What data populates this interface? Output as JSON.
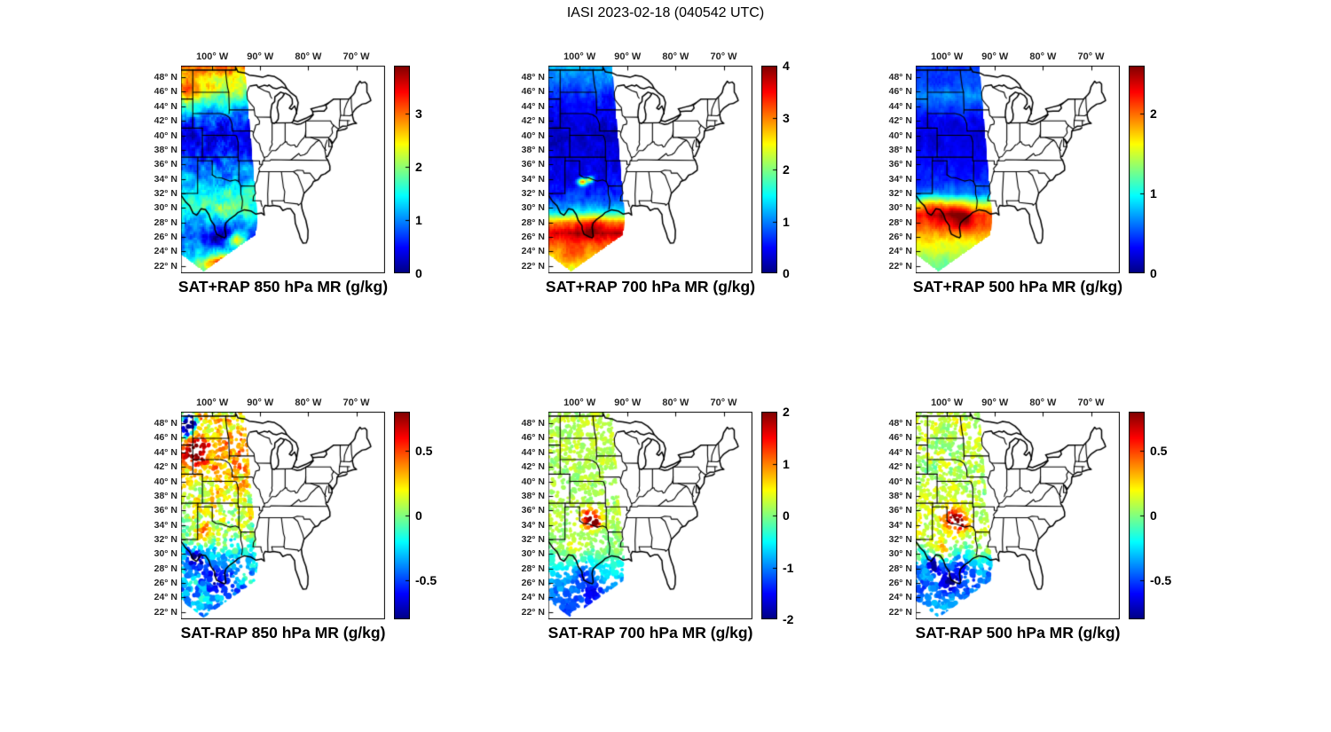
{
  "figure_title": "IASI 2023-02-18 (040542 UTC)",
  "chart_data": {
    "type": "heatmap",
    "description": "Six-panel satellite sounding figure: top row SAT+RAP mixing ratio swath fills, bottom row SAT-RAP mixing ratio difference dots, over US state map.",
    "map_extent": {
      "lon": [
        -106.5,
        -64.0
      ],
      "lat": [
        21.0,
        49.6
      ]
    },
    "lon_ticks": [
      {
        "lon": -100,
        "label": "100° W"
      },
      {
        "lon": -90,
        "label": "90° W"
      },
      {
        "lon": -80,
        "label": "80° W"
      },
      {
        "lon": -70,
        "label": "70° W"
      }
    ],
    "lat_ticks": [
      {
        "lat": 48,
        "label": "48° N"
      },
      {
        "lat": 46,
        "label": "46° N"
      },
      {
        "lat": 44,
        "label": "44° N"
      },
      {
        "lat": 42,
        "label": "42° N"
      },
      {
        "lat": 40,
        "label": "40° N"
      },
      {
        "lat": 38,
        "label": "38° N"
      },
      {
        "lat": 36,
        "label": "36° N"
      },
      {
        "lat": 34,
        "label": "34° N"
      },
      {
        "lat": 32,
        "label": "32° N"
      },
      {
        "lat": 30,
        "label": "30° N"
      },
      {
        "lat": 28,
        "label": "28° N"
      },
      {
        "lat": 26,
        "label": "26° N"
      },
      {
        "lat": 24,
        "label": "24° N"
      },
      {
        "lat": 22,
        "label": "22° N"
      }
    ],
    "swath_polygon": [
      [
        -106.5,
        49.6
      ],
      [
        -93.2,
        49.6
      ],
      [
        -90.5,
        28.6
      ],
      [
        -90.9,
        26.3
      ],
      [
        -101.8,
        21.2
      ],
      [
        -106.5,
        23.6
      ]
    ],
    "panels": [
      {
        "title": "SAT+RAP 850 hPa MR (g/kg)",
        "type": "heatmap",
        "style": "fill",
        "colorbar": {
          "min": 0,
          "max": 3.9,
          "ticks": [
            {
              "value": 3,
              "label": "3"
            },
            {
              "value": 2,
              "label": "2"
            },
            {
              "value": 1,
              "label": "1"
            },
            {
              "value": 0,
              "label": "0"
            }
          ]
        },
        "noise": 0.5,
        "profile": [
          [
            49.6,
            3.0
          ],
          [
            48,
            2.5
          ],
          [
            46,
            2.1
          ],
          [
            44,
            1.4
          ],
          [
            42,
            0.7
          ],
          [
            40,
            0.35
          ],
          [
            38,
            0.5
          ],
          [
            36,
            0.85
          ],
          [
            34,
            1.15
          ],
          [
            32,
            1.55
          ],
          [
            30,
            1.7
          ],
          [
            28,
            1.15
          ],
          [
            26,
            0.75
          ],
          [
            24,
            1.2
          ],
          [
            21,
            1.6
          ]
        ],
        "hotspots": [
          [
            -104.6,
            46,
            2.4,
            1.5,
            0.85
          ],
          [
            -97.6,
            22.4,
            3,
            0.8,
            2.2
          ],
          [
            -94.9,
            25.6,
            1.3,
            0.7,
            1.6
          ],
          [
            -98.6,
            25.9,
            1.8,
            1.1,
            -0.75
          ],
          [
            -95.9,
            30.1,
            1.7,
            1,
            0.5
          ]
        ]
      },
      {
        "title": "SAT+RAP 700 hPa MR (g/kg)",
        "type": "heatmap",
        "style": "fill",
        "colorbar": {
          "min": 0,
          "max": 4,
          "ticks": [
            {
              "value": 4,
              "label": "4"
            },
            {
              "value": 3,
              "label": "3"
            },
            {
              "value": 2,
              "label": "2"
            },
            {
              "value": 1,
              "label": "1"
            },
            {
              "value": 0,
              "label": "0"
            }
          ]
        },
        "noise": 0.28,
        "profile": [
          [
            49.6,
            1.25
          ],
          [
            47,
            0.9
          ],
          [
            45,
            0.6
          ],
          [
            43,
            0.45
          ],
          [
            41,
            0.35
          ],
          [
            39,
            0.3
          ],
          [
            37,
            0.35
          ],
          [
            35,
            0.4
          ],
          [
            33,
            0.5
          ],
          [
            31,
            0.8
          ],
          [
            29.5,
            1.4
          ],
          [
            28,
            2.9
          ],
          [
            26.5,
            3.6
          ],
          [
            25,
            3.1
          ],
          [
            23,
            2.5
          ],
          [
            21,
            2.2
          ]
        ],
        "hotspots": [
          [
            -97.6,
            27.4,
            2.6,
            1.3,
            0.5
          ],
          [
            -101.5,
            23.3,
            2.2,
            1.1,
            0.5
          ],
          [
            -99.4,
            33.6,
            0.7,
            0.35,
            2.4
          ],
          [
            -97.8,
            33.9,
            0.5,
            0.3,
            1.8
          ]
        ]
      },
      {
        "title": "SAT+RAP 500 hPa MR (g/kg)",
        "type": "heatmap",
        "style": "fill",
        "colorbar": {
          "min": 0,
          "max": 2.6,
          "ticks": [
            {
              "value": 2,
              "label": "2"
            },
            {
              "value": 1,
              "label": "1"
            },
            {
              "value": 0,
              "label": "0"
            }
          ]
        },
        "noise": 0.14,
        "profile": [
          [
            49.6,
            0.45
          ],
          [
            47,
            0.5
          ],
          [
            45.5,
            0.68
          ],
          [
            44,
            0.5
          ],
          [
            42,
            0.3
          ],
          [
            40,
            0.25
          ],
          [
            38,
            0.28
          ],
          [
            36,
            0.32
          ],
          [
            34,
            0.4
          ],
          [
            32,
            0.6
          ],
          [
            30.5,
            1.5
          ],
          [
            29,
            2.15
          ],
          [
            27,
            1.95
          ],
          [
            25,
            1.6
          ],
          [
            23,
            1.35
          ],
          [
            21,
            1.2
          ]
        ],
        "hotspots": [
          [
            -99.2,
            29.4,
            3,
            1.3,
            0.45
          ],
          [
            -103.2,
            30.4,
            1.6,
            1,
            0.3
          ],
          [
            -96.4,
            28.3,
            1.4,
            0.9,
            0.35
          ]
        ]
      },
      {
        "title": "SAT-RAP 850 hPa MR (g/kg)",
        "type": "scatter",
        "style": "dots",
        "dot_count": 1400,
        "colorbar": {
          "min": -0.8,
          "max": 0.8,
          "ticks": [
            {
              "value": 0.5,
              "label": "0.5"
            },
            {
              "value": 0,
              "label": "0"
            },
            {
              "value": -0.5,
              "label": "-0.5"
            }
          ]
        },
        "noise": 0.33,
        "profile": [
          [
            49.6,
            0.15
          ],
          [
            48,
            0.25
          ],
          [
            46,
            0.3
          ],
          [
            44,
            0.35
          ],
          [
            42,
            0.3
          ],
          [
            40,
            0.22
          ],
          [
            38,
            0.18
          ],
          [
            36,
            0.12
          ],
          [
            34,
            0.05
          ],
          [
            32,
            -0.05
          ],
          [
            30,
            -0.2
          ],
          [
            28,
            -0.3
          ],
          [
            26,
            -0.28
          ],
          [
            24,
            -0.32
          ],
          [
            21,
            -0.3
          ]
        ],
        "hotspots": [
          [
            -104.4,
            48.4,
            1.3,
            0.8,
            -1.1
          ],
          [
            -102.6,
            48.9,
            0.9,
            0.5,
            0.7
          ],
          [
            -105.4,
            47.1,
            0.9,
            0.8,
            -0.9
          ],
          [
            -103.6,
            44,
            1.8,
            1.2,
            0.45
          ],
          [
            -103.9,
            29.6,
            1.6,
            1.1,
            -0.5
          ],
          [
            -99,
            26.6,
            2,
            1.4,
            -0.3
          ],
          [
            -101.8,
            33,
            1.5,
            1.2,
            0.35
          ]
        ]
      },
      {
        "title": "SAT-RAP 700 hPa MR (g/kg)",
        "type": "scatter",
        "style": "dots",
        "dot_count": 1300,
        "gap_band": [
          37.5,
          41.5
        ],
        "colorbar": {
          "min": -2,
          "max": 2,
          "ticks": [
            {
              "value": 2,
              "label": "2"
            },
            {
              "value": 1,
              "label": "1"
            },
            {
              "value": 0,
              "label": "0"
            },
            {
              "value": -1,
              "label": "-1"
            },
            {
              "value": -2,
              "label": "-2"
            }
          ]
        },
        "noise": 0.33,
        "profile": [
          [
            49.6,
            0.2
          ],
          [
            46,
            0.25
          ],
          [
            43,
            0.2
          ],
          [
            40,
            0.15
          ],
          [
            37,
            0.2
          ],
          [
            34,
            0.15
          ],
          [
            31,
            0.05
          ],
          [
            29,
            -0.3
          ],
          [
            27,
            -0.7
          ],
          [
            25,
            -1
          ],
          [
            23,
            -1.2
          ],
          [
            21,
            -1.3
          ]
        ],
        "hotspots": [
          [
            -97.9,
            34.9,
            1.3,
            0.9,
            1.9
          ],
          [
            -96.6,
            34.1,
            0.8,
            0.5,
            1.3
          ],
          [
            -99.2,
            27.2,
            1.6,
            1.1,
            -0.7
          ],
          [
            -97.4,
            24.8,
            1.6,
            1,
            -0.6
          ],
          [
            -101,
            31,
            1.2,
            0.9,
            0.5
          ]
        ]
      },
      {
        "title": "SAT-RAP 500 hPa MR (g/kg)",
        "type": "scatter",
        "style": "dots",
        "dot_count": 1300,
        "colorbar": {
          "min": -0.8,
          "max": 0.8,
          "ticks": [
            {
              "value": 0.5,
              "label": "0.5"
            },
            {
              "value": 0,
              "label": "0"
            },
            {
              "value": -0.5,
              "label": "-0.5"
            }
          ]
        },
        "noise": 0.2,
        "profile": [
          [
            49.6,
            0.1
          ],
          [
            46,
            0.12
          ],
          [
            43,
            0.08
          ],
          [
            40,
            0.06
          ],
          [
            37,
            0.1
          ],
          [
            34,
            0.15
          ],
          [
            32,
            0.08
          ],
          [
            30,
            -0.05
          ],
          [
            28,
            -0.3
          ],
          [
            26,
            -0.42
          ],
          [
            24,
            -0.38
          ],
          [
            21,
            -0.33
          ]
        ],
        "hotspots": [
          [
            -98.4,
            34.9,
            1.6,
            1,
            0.6
          ],
          [
            -96.9,
            33.9,
            1,
            0.6,
            0.4
          ],
          [
            -101.2,
            30.6,
            1.2,
            0.9,
            0.35
          ],
          [
            -103,
            28.6,
            1.2,
            0.9,
            -0.5
          ],
          [
            -99.4,
            26.5,
            2,
            1.4,
            -0.35
          ],
          [
            -97,
            29,
            1.2,
            0.8,
            -0.3
          ]
        ]
      }
    ]
  }
}
